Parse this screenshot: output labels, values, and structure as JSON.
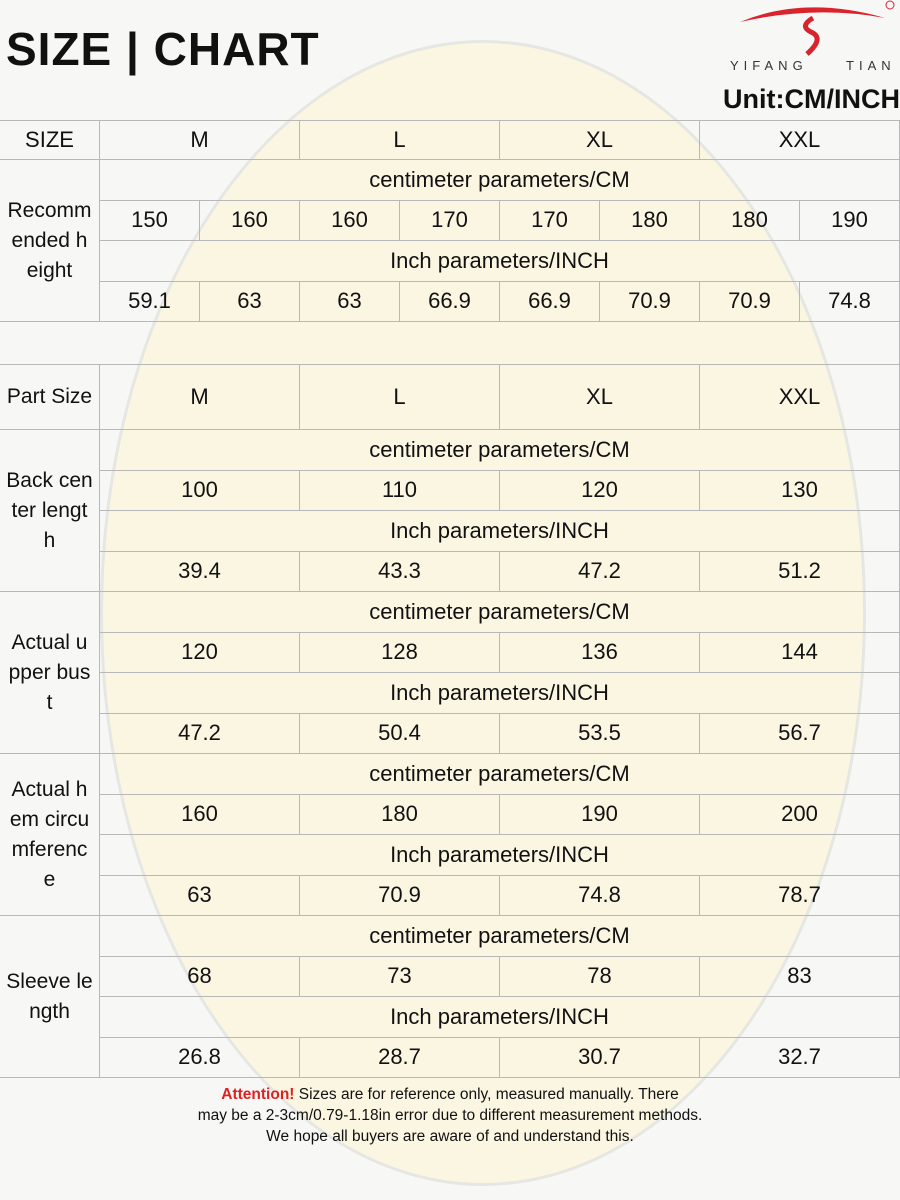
{
  "header": {
    "title": "SIZE | CHART",
    "brand": "YIFANG TIAN",
    "unit": "Unit:CM/INCH"
  },
  "size_row": {
    "label": "SIZE",
    "sizes": [
      "M",
      "L",
      "XL",
      "XXL"
    ]
  },
  "height": {
    "label": "Recommended height",
    "cm_label": "centimeter parameters/CM",
    "cm": [
      "150",
      "160",
      "160",
      "170",
      "170",
      "180",
      "180",
      "190"
    ],
    "inch_label": "Inch parameters/INCH",
    "inch": [
      "59.1",
      "63",
      "63",
      "66.9",
      "66.9",
      "70.9",
      "70.9",
      "74.8"
    ]
  },
  "part_row": {
    "label": "Part Size",
    "sizes": [
      "M",
      "L",
      "XL",
      "XXL"
    ]
  },
  "parts": [
    {
      "label": "Back center length",
      "cm_label": "centimeter parameters/CM",
      "cm": [
        "100",
        "110",
        "120",
        "130"
      ],
      "inch_label": "Inch parameters/INCH",
      "inch": [
        "39.4",
        "43.3",
        "47.2",
        "51.2"
      ]
    },
    {
      "label": "Actual upper bust",
      "cm_label": "centimeter parameters/CM",
      "cm": [
        "120",
        "128",
        "136",
        "144"
      ],
      "inch_label": "Inch parameters/INCH",
      "inch": [
        "47.2",
        "50.4",
        "53.5",
        "56.7"
      ]
    },
    {
      "label": "Actual hem circumference",
      "cm_label": "centimeter parameters/CM",
      "cm": [
        "160",
        "180",
        "190",
        "200"
      ],
      "inch_label": "Inch parameters/INCH",
      "inch": [
        "63",
        "70.9",
        "74.8",
        "78.7"
      ]
    },
    {
      "label": "Sleeve length",
      "cm_label": "centimeter parameters/CM",
      "cm": [
        "68",
        "73",
        "78",
        "83"
      ],
      "inch_label": "Inch parameters/INCH",
      "inch": [
        "26.8",
        "28.7",
        "30.7",
        "32.7"
      ]
    }
  ],
  "footer": {
    "attention": "Attention!",
    "lines": [
      "Sizes are for reference only, measured manually. There",
      "may be a 2-3cm/0.79-1.18in error due to different measurement methods.",
      "We hope all buyers are aware of and understand this."
    ]
  }
}
